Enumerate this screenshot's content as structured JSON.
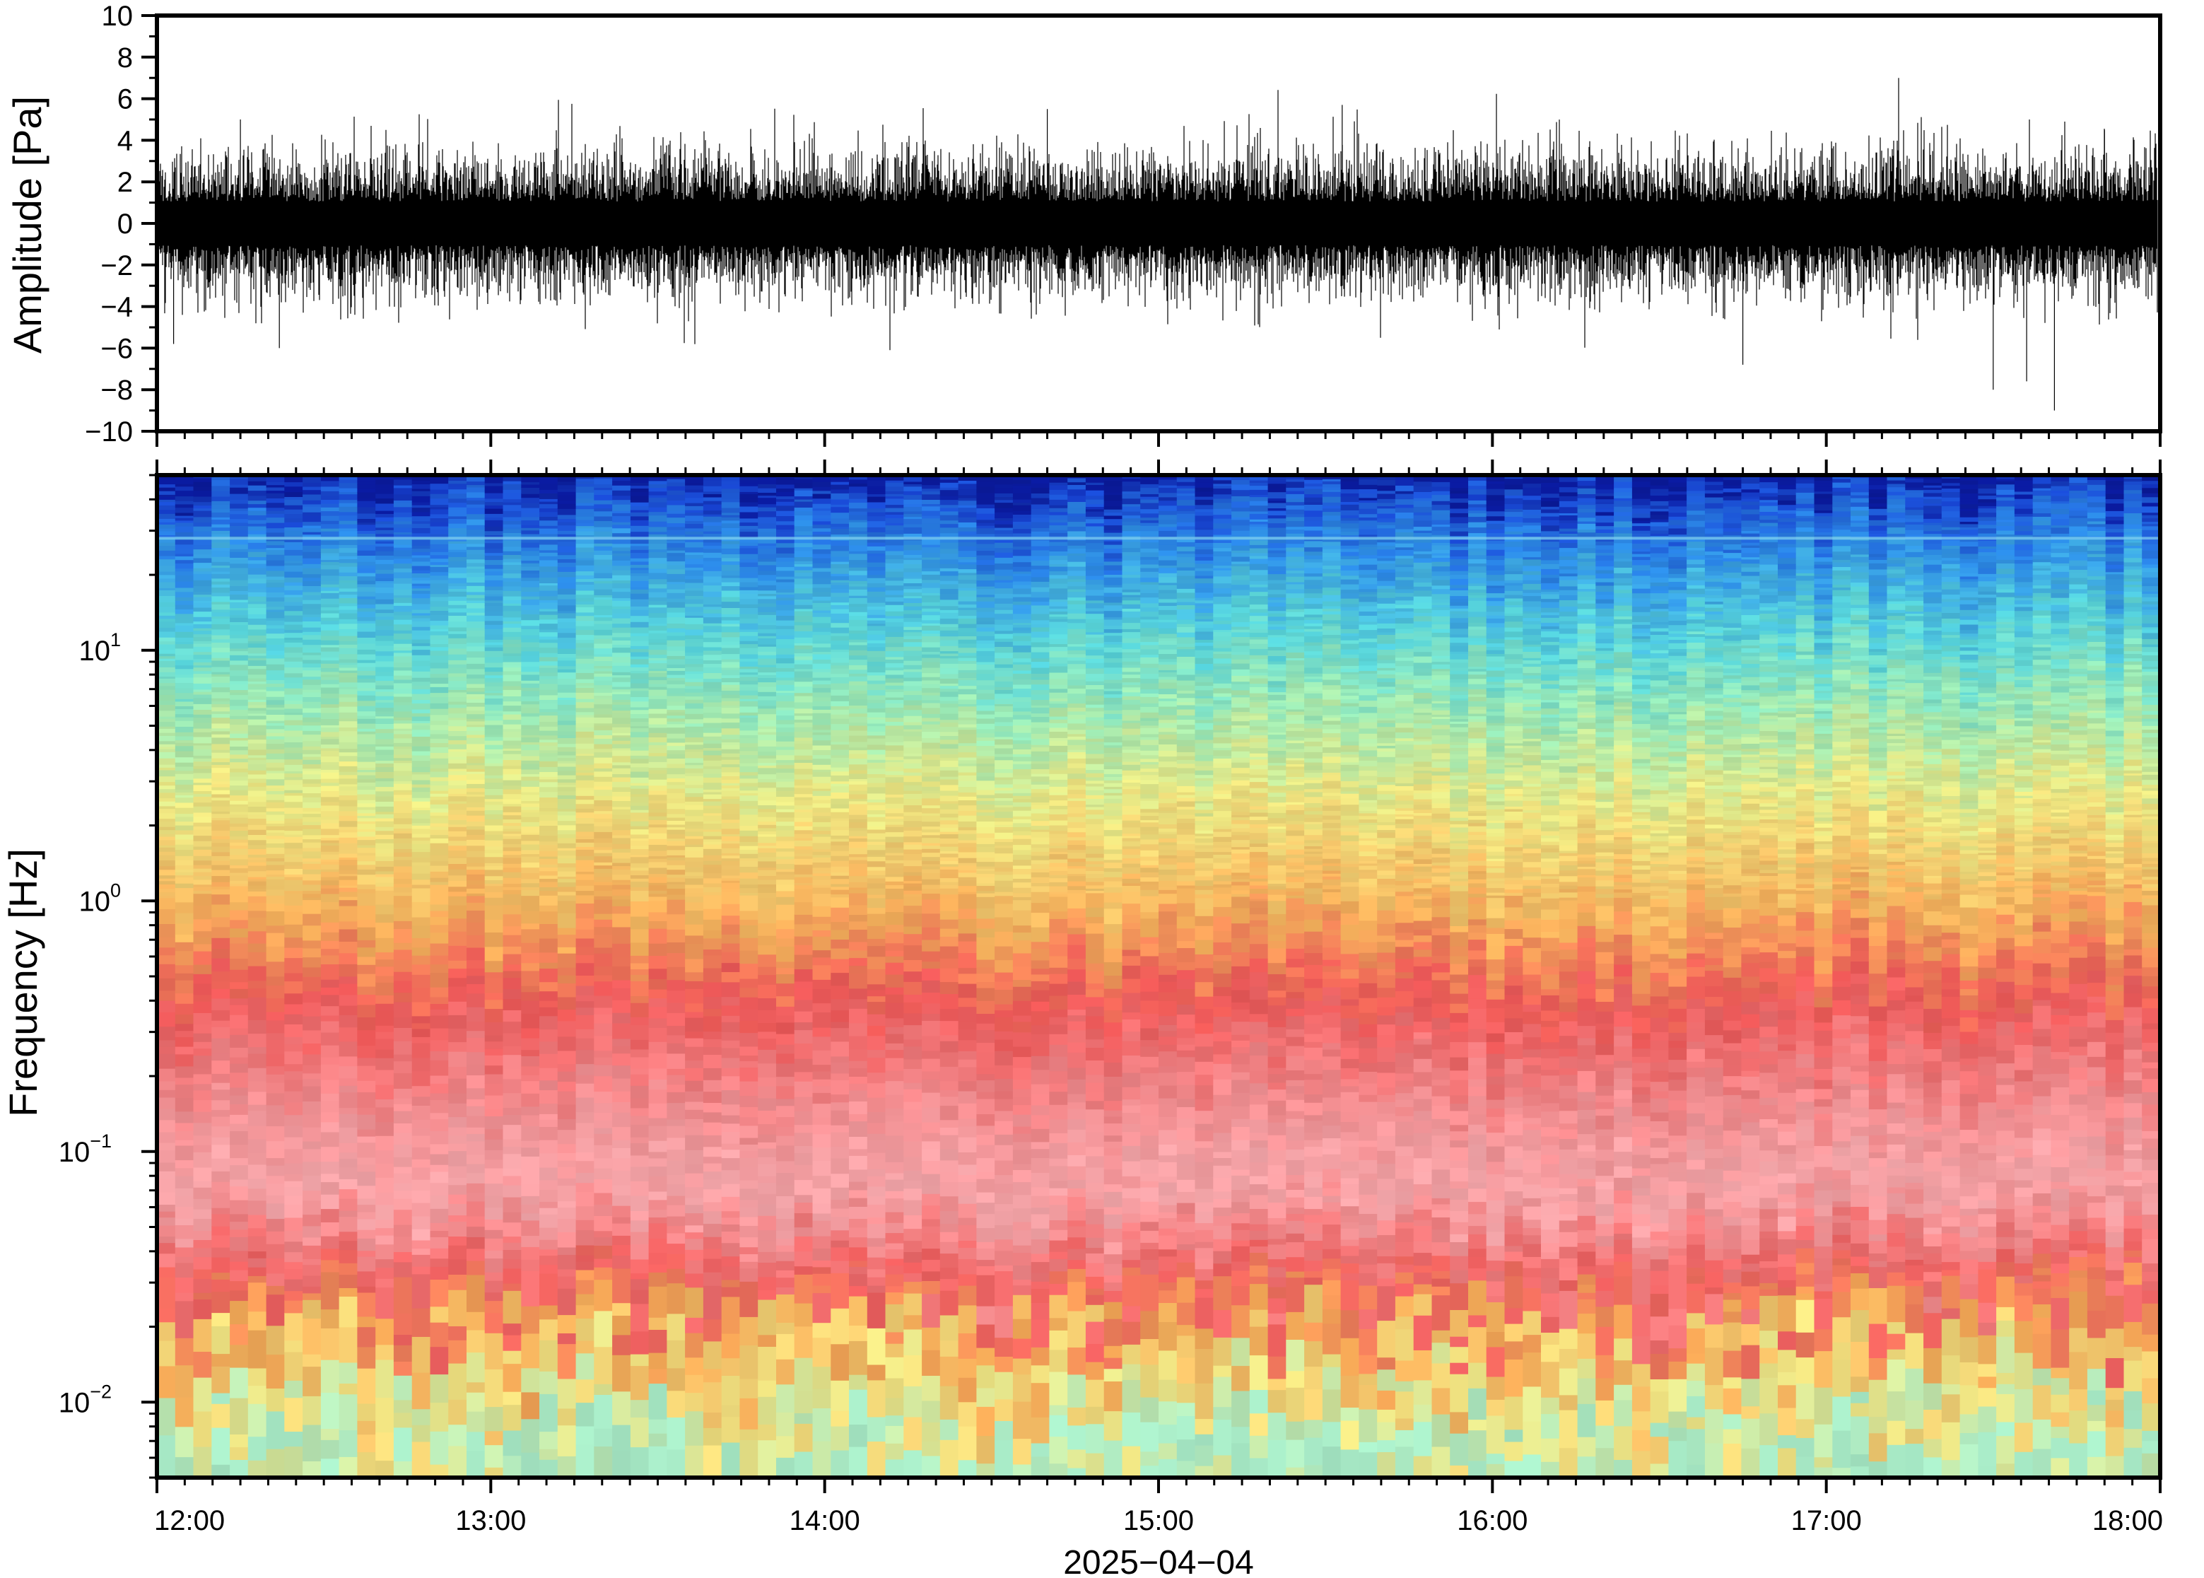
{
  "chart_data": [
    {
      "type": "line",
      "panel": "waveform",
      "ylabel": "Amplitude [Pa]",
      "ylim": [
        -10,
        10
      ],
      "yticks": [
        -10,
        -8,
        -6,
        -4,
        -2,
        0,
        2,
        4,
        6,
        8,
        10
      ],
      "ytick_labels": [
        "−10",
        "−8",
        "−6",
        "−4",
        "−2",
        "0",
        "2",
        "4",
        "6",
        "8",
        "10"
      ],
      "x_range": [
        "12:00",
        "18:00"
      ],
      "typical_envelope_pa": 3,
      "peaks": [
        {
          "time": "12:03",
          "value": -5.8
        },
        {
          "time": "12:15",
          "value": 5
        },
        {
          "time": "12:22",
          "value": -6
        },
        {
          "time": "14:40",
          "value": 5.5
        },
        {
          "time": "15:33",
          "value": 5.7
        },
        {
          "time": "16:45",
          "value": -6.8
        },
        {
          "time": "17:13",
          "value": 7
        },
        {
          "time": "17:30",
          "value": -8
        },
        {
          "time": "17:36",
          "value": -7.6
        },
        {
          "time": "17:41",
          "value": -9
        },
        {
          "time": "17:50",
          "value": 4.5
        }
      ],
      "color": "#000000"
    },
    {
      "type": "heatmap",
      "panel": "spectrogram",
      "ylabel": "Frequency [Hz]",
      "yscale": "log",
      "ylim": [
        0.005,
        50
      ],
      "yticks": [
        0.01,
        0.1,
        1,
        10
      ],
      "ytick_labels": [
        {
          "base": "10",
          "exp": "−2"
        },
        {
          "base": "10",
          "exp": "−1"
        },
        {
          "base": "10",
          "exp": "0"
        },
        {
          "base": "10",
          "exp": "1"
        }
      ],
      "xlabel": "2025−04−04",
      "xticks": [
        "12:00",
        "13:00",
        "14:00",
        "15:00",
        "16:00",
        "17:00",
        "18:00"
      ],
      "spectral_line_hz": 28,
      "colormap": [
        {
          "freq_hz": 0.005,
          "color": "#a9ecc8"
        },
        {
          "freq_hz": 0.01,
          "color": "#f2e784"
        },
        {
          "freq_hz": 0.02,
          "color": "#f6a957"
        },
        {
          "freq_hz": 0.03,
          "color": "#f06060"
        },
        {
          "freq_hz": 0.07,
          "color": "#f7a8ac"
        },
        {
          "freq_hz": 0.15,
          "color": "#f48f92"
        },
        {
          "freq_hz": 0.4,
          "color": "#ee5858"
        },
        {
          "freq_hz": 0.9,
          "color": "#f7b15c"
        },
        {
          "freq_hz": 2.5,
          "color": "#eeea84"
        },
        {
          "freq_hz": 6,
          "color": "#9cebb7"
        },
        {
          "freq_hz": 12,
          "color": "#58d6dc"
        },
        {
          "freq_hz": 25,
          "color": "#2d8de7"
        },
        {
          "freq_hz": 40,
          "color": "#1a4cd6"
        },
        {
          "freq_hz": 50,
          "color": "#0a1a9c"
        }
      ]
    }
  ]
}
